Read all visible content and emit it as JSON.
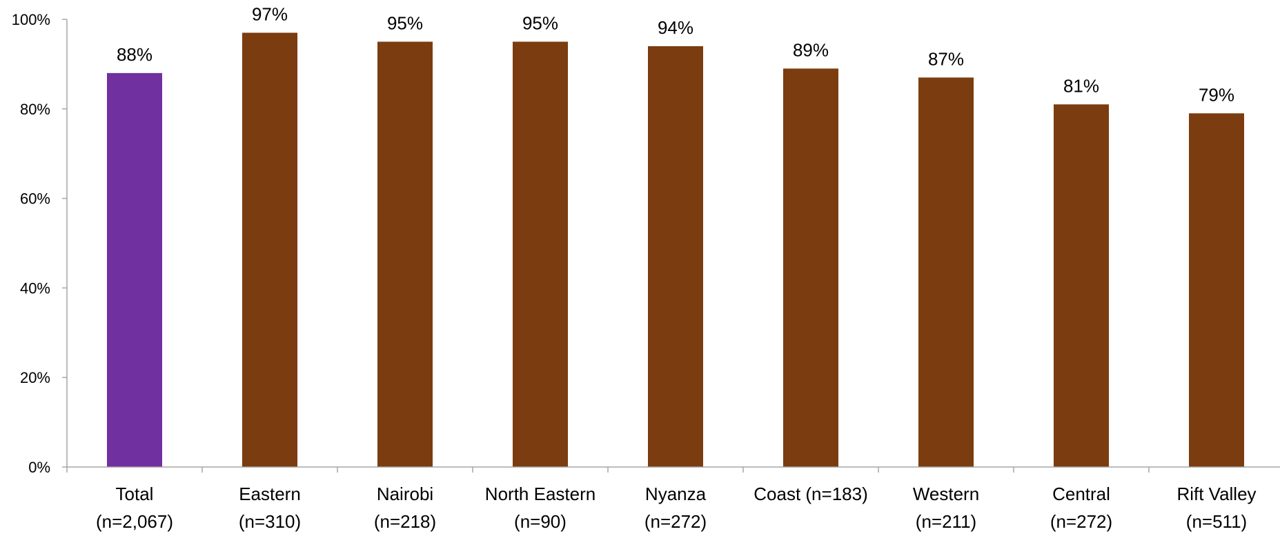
{
  "chart_data": {
    "type": "bar",
    "categories": [
      [
        "Total",
        "(n=2,067)"
      ],
      [
        "Eastern",
        "(n=310)"
      ],
      [
        "Nairobi",
        "(n=218)"
      ],
      [
        "North Eastern",
        "(n=90)"
      ],
      [
        "Nyanza",
        "(n=272)"
      ],
      [
        "Coast (n=183)"
      ],
      [
        "Western",
        "(n=211)"
      ],
      [
        "Central",
        "(n=272)"
      ],
      [
        "Rift Valley",
        "(n=511)"
      ]
    ],
    "values": [
      88,
      97,
      95,
      95,
      94,
      89,
      87,
      81,
      79
    ],
    "value_labels": [
      "88%",
      "97%",
      "95%",
      "95%",
      "94%",
      "89%",
      "87%",
      "81%",
      "79%"
    ],
    "bar_colors": [
      "#7030A0",
      "#7B3C0F",
      "#7B3C0F",
      "#7B3C0F",
      "#7B3C0F",
      "#7B3C0F",
      "#7B3C0F",
      "#7B3C0F",
      "#7B3C0F"
    ],
    "yticks": [
      0,
      20,
      40,
      60,
      80,
      100
    ],
    "ytick_labels": [
      "0%",
      "20%",
      "40%",
      "60%",
      "80%",
      "100%"
    ],
    "ylim": [
      0,
      100
    ],
    "grid": false,
    "legend": "none",
    "axis_color": "#A6A6A6"
  }
}
